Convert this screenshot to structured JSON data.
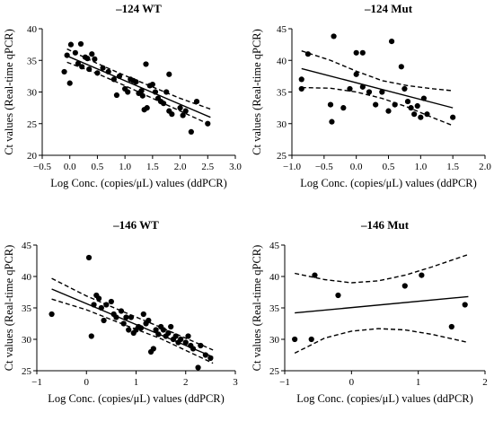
{
  "chart_data": [
    {
      "type": "scatter",
      "title": "–124 WT",
      "xlabel": "Log Conc. (copies/μL) values (ddPCR)",
      "ylabel": "Ct values (Real-time qPCR)",
      "xlim": [
        -0.5,
        3.0
      ],
      "ylim": [
        20,
        40
      ],
      "xticks": [
        "−0.5",
        "0.0",
        "0.5",
        "1.0",
        "1.5",
        "2.0",
        "2.5",
        "3.0"
      ],
      "yticks": [
        "20",
        "25",
        "30",
        "35",
        "40"
      ],
      "points": [
        [
          -0.1,
          33.2
        ],
        [
          -0.05,
          35.8
        ],
        [
          0.0,
          31.4
        ],
        [
          0.02,
          37.5
        ],
        [
          0.1,
          36.2
        ],
        [
          0.15,
          34.5
        ],
        [
          0.2,
          37.6
        ],
        [
          0.22,
          34.0
        ],
        [
          0.28,
          35.5
        ],
        [
          0.32,
          35.3
        ],
        [
          0.35,
          33.6
        ],
        [
          0.4,
          36.0
        ],
        [
          0.45,
          35.2
        ],
        [
          0.5,
          33.0
        ],
        [
          0.6,
          33.8
        ],
        [
          0.7,
          33.2
        ],
        [
          0.8,
          32.0
        ],
        [
          0.85,
          29.5
        ],
        [
          0.9,
          32.5
        ],
        [
          1.0,
          30.5
        ],
        [
          1.05,
          30.0
        ],
        [
          1.1,
          32.0
        ],
        [
          1.15,
          31.8
        ],
        [
          1.2,
          31.6
        ],
        [
          1.25,
          29.8
        ],
        [
          1.3,
          30.2
        ],
        [
          1.32,
          29.4
        ],
        [
          1.35,
          27.2
        ],
        [
          1.38,
          34.4
        ],
        [
          1.4,
          27.5
        ],
        [
          1.45,
          31.0
        ],
        [
          1.5,
          31.2
        ],
        [
          1.55,
          30.0
        ],
        [
          1.6,
          29.0
        ],
        [
          1.65,
          28.5
        ],
        [
          1.7,
          28.2
        ],
        [
          1.75,
          30.0
        ],
        [
          1.8,
          32.8
        ],
        [
          1.8,
          27.0
        ],
        [
          1.85,
          26.5
        ],
        [
          2.0,
          27.5
        ],
        [
          2.05,
          26.3
        ],
        [
          2.1,
          27.0
        ],
        [
          2.2,
          23.7
        ],
        [
          2.3,
          28.5
        ],
        [
          2.5,
          25.0
        ]
      ],
      "fit": {
        "x": [
          -0.05,
          2.55
        ],
        "y": [
          35.7,
          26.0
        ]
      },
      "ci_upper": {
        "x": [
          -0.05,
          0.5,
          1.0,
          1.5,
          2.0,
          2.55
        ],
        "y": [
          36.8,
          34.5,
          32.6,
          30.8,
          29.0,
          27.3
        ]
      },
      "ci_lower": {
        "x": [
          -0.05,
          0.5,
          1.0,
          1.5,
          2.0,
          2.55
        ],
        "y": [
          34.7,
          32.9,
          31.0,
          29.0,
          27.0,
          24.8
        ]
      }
    },
    {
      "type": "scatter",
      "title": "–124 Mut",
      "xlabel": "Log Conc. (copies/μL) values (ddPCR)",
      "ylabel": "Ct values (Real-time qPCR)",
      "xlim": [
        -1.0,
        2.0
      ],
      "ylim": [
        25,
        45
      ],
      "xticks": [
        "−1.0",
        "−0.5",
        "0.0",
        "0.5",
        "1.0",
        "1.5",
        "2.0"
      ],
      "yticks": [
        "25",
        "30",
        "35",
        "40",
        "45"
      ],
      "points": [
        [
          -0.85,
          35.5
        ],
        [
          -0.85,
          37.0
        ],
        [
          -0.75,
          41.0
        ],
        [
          -0.4,
          33.0
        ],
        [
          -0.38,
          30.3
        ],
        [
          -0.35,
          43.8
        ],
        [
          -0.2,
          32.5
        ],
        [
          -0.1,
          35.5
        ],
        [
          0.0,
          37.8
        ],
        [
          0.0,
          41.2
        ],
        [
          0.1,
          41.2
        ],
        [
          0.1,
          35.8
        ],
        [
          0.2,
          35.0
        ],
        [
          0.3,
          33.0
        ],
        [
          0.4,
          35.0
        ],
        [
          0.5,
          32.0
        ],
        [
          0.55,
          43.0
        ],
        [
          0.6,
          33.0
        ],
        [
          0.7,
          39.0
        ],
        [
          0.75,
          35.5
        ],
        [
          0.8,
          33.5
        ],
        [
          0.85,
          32.5
        ],
        [
          0.9,
          31.5
        ],
        [
          0.95,
          32.8
        ],
        [
          1.0,
          31.0
        ],
        [
          1.05,
          34.0
        ],
        [
          1.1,
          31.5
        ],
        [
          1.5,
          31.0
        ]
      ],
      "fit": {
        "x": [
          -0.85,
          1.5
        ],
        "y": [
          38.7,
          32.5
        ]
      },
      "ci_upper": {
        "x": [
          -0.85,
          -0.4,
          0.0,
          0.4,
          0.8,
          1.2,
          1.5
        ],
        "y": [
          41.5,
          40.0,
          38.3,
          36.8,
          36.0,
          35.5,
          35.2
        ]
      },
      "ci_lower": {
        "x": [
          -0.85,
          -0.4,
          0.0,
          0.4,
          0.8,
          1.2,
          1.5
        ],
        "y": [
          35.7,
          35.6,
          35.0,
          34.0,
          32.6,
          30.9,
          29.7
        ]
      }
    },
    {
      "type": "scatter",
      "title": "–146 WT",
      "xlabel": "Log Conc. (copies/μL) values (ddPCR)",
      "ylabel": "Ct values (Real-time qPCR)",
      "xlim": [
        -1,
        3
      ],
      "ylim": [
        25,
        45
      ],
      "xticks": [
        "−1",
        "0",
        "1",
        "2",
        "3"
      ],
      "yticks": [
        "25",
        "30",
        "35",
        "40",
        "45"
      ],
      "points": [
        [
          -0.7,
          34.0
        ],
        [
          0.05,
          43.0
        ],
        [
          0.1,
          30.5
        ],
        [
          0.15,
          35.5
        ],
        [
          0.2,
          37.0
        ],
        [
          0.25,
          36.5
        ],
        [
          0.3,
          35.0
        ],
        [
          0.35,
          33.0
        ],
        [
          0.4,
          35.5
        ],
        [
          0.5,
          36.0
        ],
        [
          0.55,
          34.0
        ],
        [
          0.6,
          33.5
        ],
        [
          0.7,
          34.5
        ],
        [
          0.75,
          32.5
        ],
        [
          0.8,
          33.5
        ],
        [
          0.85,
          31.5
        ],
        [
          0.9,
          33.5
        ],
        [
          0.95,
          31.0
        ],
        [
          1.0,
          31.5
        ],
        [
          1.05,
          32.0
        ],
        [
          1.1,
          31.8
        ],
        [
          1.15,
          34.0
        ],
        [
          1.2,
          32.5
        ],
        [
          1.25,
          33.0
        ],
        [
          1.3,
          28.0
        ],
        [
          1.35,
          28.5
        ],
        [
          1.4,
          31.5
        ],
        [
          1.45,
          30.8
        ],
        [
          1.5,
          32.0
        ],
        [
          1.55,
          31.5
        ],
        [
          1.6,
          30.5
        ],
        [
          1.65,
          31.0
        ],
        [
          1.7,
          32.0
        ],
        [
          1.75,
          30.0
        ],
        [
          1.8,
          30.5
        ],
        [
          1.85,
          29.5
        ],
        [
          1.9,
          30.0
        ],
        [
          2.0,
          29.5
        ],
        [
          2.05,
          30.5
        ],
        [
          2.1,
          29.0
        ],
        [
          2.15,
          28.5
        ],
        [
          2.25,
          25.5
        ],
        [
          2.3,
          29.0
        ],
        [
          2.4,
          27.5
        ],
        [
          2.5,
          27.0
        ]
      ],
      "fit": {
        "x": [
          -0.7,
          2.55
        ],
        "y": [
          38.0,
          27.2
        ]
      },
      "ci_upper": {
        "x": [
          -0.7,
          0.0,
          0.8,
          1.5,
          2.55
        ],
        "y": [
          39.7,
          36.9,
          34.2,
          31.9,
          28.3
        ]
      },
      "ci_lower": {
        "x": [
          -0.7,
          0.0,
          0.8,
          1.5,
          2.55
        ],
        "y": [
          36.4,
          34.7,
          32.2,
          30.1,
          26.2
        ]
      }
    },
    {
      "type": "scatter",
      "title": "–146 Mut",
      "xlabel": "Log Conc. (copies/μL) values (ddPCR)",
      "ylabel": "Ct values (Real-time qPCR)",
      "xlim": [
        -1,
        2
      ],
      "ylim": [
        25,
        45
      ],
      "xticks": [
        "−1",
        "0",
        "1",
        "2"
      ],
      "yticks": [
        "25",
        "30",
        "35",
        "40",
        "45"
      ],
      "points": [
        [
          -0.85,
          30.0
        ],
        [
          -0.6,
          30.0
        ],
        [
          -0.55,
          40.2
        ],
        [
          -0.2,
          37.0
        ],
        [
          0.8,
          38.5
        ],
        [
          1.05,
          40.2
        ],
        [
          1.5,
          32.0
        ],
        [
          1.7,
          35.5
        ]
      ],
      "fit": {
        "x": [
          -0.85,
          1.75
        ],
        "y": [
          34.2,
          36.8
        ]
      },
      "ci_upper": {
        "x": [
          -0.85,
          -0.4,
          0.0,
          0.4,
          0.8,
          1.2,
          1.75
        ],
        "y": [
          40.5,
          39.5,
          39.0,
          39.3,
          40.2,
          41.5,
          43.5
        ]
      },
      "ci_lower": {
        "x": [
          -0.85,
          -0.4,
          0.0,
          0.4,
          0.8,
          1.2,
          1.75
        ],
        "y": [
          27.8,
          30.2,
          31.3,
          31.7,
          31.5,
          30.8,
          29.5
        ]
      }
    }
  ]
}
